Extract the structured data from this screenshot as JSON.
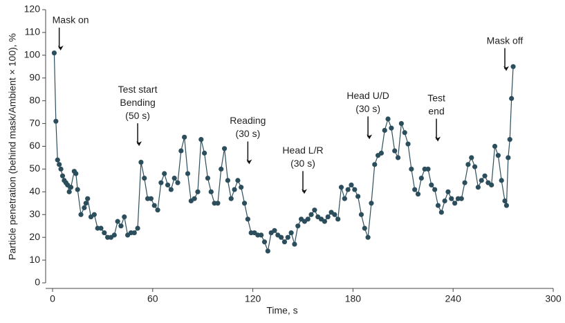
{
  "chart_data": {
    "type": "line",
    "xlabel": "Time, s",
    "ylabel": "Particle penetration (behind mask/Ambient × 100), %",
    "color": "#2c4e5c",
    "x": [
      1,
      2,
      3,
      4,
      5,
      6,
      7,
      8,
      9,
      10,
      11,
      13,
      14,
      15,
      17,
      19,
      20,
      21,
      23,
      25,
      27,
      29,
      31,
      33,
      35,
      37,
      39,
      41,
      43,
      45,
      47,
      49,
      51,
      53,
      55,
      57,
      59,
      61,
      63,
      65,
      67,
      69,
      71,
      73,
      75,
      77,
      79,
      81,
      83,
      85,
      87,
      89,
      91,
      93,
      95,
      97,
      99,
      101,
      103,
      105,
      107,
      109,
      111,
      113,
      115,
      117,
      119,
      121,
      123,
      125,
      127,
      129,
      131,
      133,
      135,
      137,
      139,
      141,
      143,
      145,
      147,
      149,
      151,
      153,
      155,
      157,
      159,
      161,
      163,
      165,
      167,
      169,
      171,
      173,
      175,
      177,
      179,
      181,
      183,
      185,
      187,
      189,
      191,
      193,
      195,
      197,
      199,
      201,
      203,
      205,
      207,
      209,
      211,
      213,
      215,
      217,
      219,
      221,
      223,
      225,
      227,
      229,
      231,
      233,
      235,
      237,
      239,
      241,
      243,
      245,
      247,
      249,
      251,
      253,
      255,
      257,
      259,
      261,
      263,
      265,
      267,
      269,
      271,
      272,
      273,
      274,
      275,
      276
    ],
    "values": [
      101,
      71,
      54,
      52,
      50,
      47,
      45,
      44,
      43,
      40,
      42,
      49,
      48,
      41,
      30,
      33,
      35,
      37,
      29,
      30,
      24,
      24,
      22,
      20,
      20,
      21,
      27,
      25,
      29,
      21,
      22,
      22,
      24,
      53,
      46,
      37,
      37,
      34,
      32,
      44,
      48,
      43,
      41,
      46,
      44,
      58,
      64,
      48,
      36,
      37,
      40,
      63,
      57,
      46,
      40,
      35,
      35,
      50,
      59,
      45,
      37,
      41,
      45,
      42,
      35,
      28,
      22,
      22,
      21,
      21,
      18,
      14,
      22,
      23,
      21,
      20,
      18,
      20,
      22,
      17,
      25,
      28,
      27,
      28,
      30,
      32,
      29,
      28,
      27,
      29,
      31,
      30,
      28,
      42,
      37,
      41,
      43,
      41,
      38,
      30,
      24,
      20,
      35,
      52,
      56,
      57,
      67,
      72,
      68,
      58,
      55,
      70,
      66,
      61,
      50,
      41,
      39,
      46,
      50,
      50,
      43,
      41,
      34,
      31,
      36,
      40,
      37,
      35,
      37,
      37,
      44,
      52,
      55,
      51,
      42,
      45,
      47,
      44,
      43,
      60,
      56,
      45,
      36,
      34,
      55,
      63,
      81,
      95
    ],
    "xlim": [
      0,
      300
    ],
    "xticks": [
      0,
      60,
      120,
      180,
      240,
      300
    ],
    "ylim": [
      0,
      120
    ],
    "yticks": [
      0,
      10,
      20,
      30,
      40,
      50,
      60,
      70,
      80,
      90,
      100,
      110,
      120
    ],
    "annotations": [
      {
        "lines": [
          "Mask on"
        ],
        "x": 4,
        "y": 103
      },
      {
        "lines": [
          "Test start",
          "Bending",
          "(50 s)"
        ],
        "x": 51,
        "y": 61
      },
      {
        "lines": [
          "Reading",
          "(30 s)"
        ],
        "x": 117,
        "y": 53
      },
      {
        "lines": [
          "Head L/R",
          "(30 s)"
        ],
        "x": 150,
        "y": 40
      },
      {
        "lines": [
          "Head U/D",
          "(30 s)"
        ],
        "x": 189,
        "y": 64
      },
      {
        "lines": [
          "Test",
          "end"
        ],
        "x": 230,
        "y": 63
      },
      {
        "lines": [
          "Mask off"
        ],
        "x": 271,
        "y": 94
      }
    ]
  }
}
